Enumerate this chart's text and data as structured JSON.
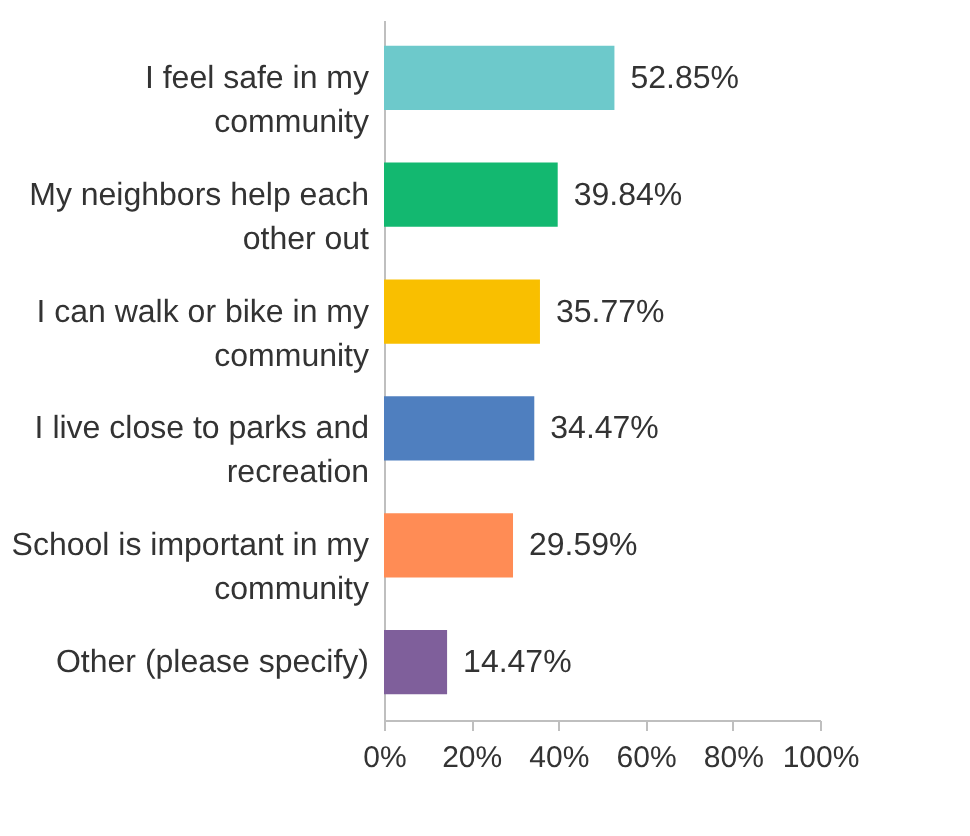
{
  "chart_data": {
    "type": "bar",
    "orientation": "horizontal",
    "categories": [
      "I feel safe in my community",
      "My neighbors help each other out",
      "I can walk or bike in my community",
      "I live close to parks and recreation",
      "School is important in my community",
      "Other (please specify)"
    ],
    "values": [
      52.85,
      39.84,
      35.77,
      34.47,
      29.59,
      14.47
    ],
    "colors": [
      "#6dc9cb",
      "#13b870",
      "#f9bf00",
      "#4f7fbf",
      "#ff8c55",
      "#7f5f9b"
    ],
    "value_labels": [
      "52.85%",
      "39.84%",
      "35.77%",
      "34.47%",
      "29.59%",
      "14.47%"
    ],
    "xlim": [
      0,
      100
    ],
    "xticks": [
      {
        "value": 0,
        "label": "0%"
      },
      {
        "value": 20,
        "label": "20%"
      },
      {
        "value": 40,
        "label": "40%"
      },
      {
        "value": 60,
        "label": "60%"
      },
      {
        "value": 80,
        "label": "80%"
      },
      {
        "value": 100,
        "label": "100%"
      }
    ],
    "grid": false
  }
}
